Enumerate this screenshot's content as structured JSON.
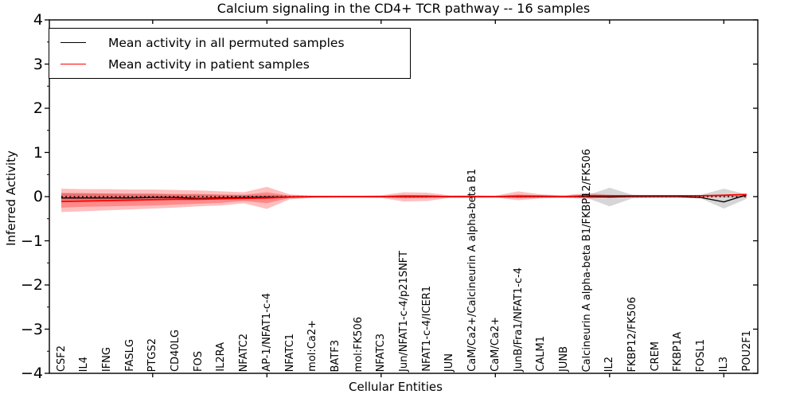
{
  "title": "Calcium signaling in the CD4+ TCR pathway -- 16 samples",
  "xlabel": "Cellular Entities",
  "ylabel": "Inferred Activity",
  "legend": {
    "items": [
      {
        "label": "Mean activity in all permuted samples",
        "color": "#000000"
      },
      {
        "label": "Mean activity in patient samples",
        "color": "#ff0000"
      }
    ]
  },
  "colors": {
    "permuted_line": "#000000",
    "patient_line": "#ff0000",
    "permuted_band": "rgba(120,120,120,0.30)",
    "patient_band": "rgba(255,0,0,0.25)",
    "axis": "#000000"
  },
  "chart_data": {
    "type": "line",
    "title": "Calcium signaling in the CD4+ TCR pathway -- 16 samples",
    "xlabel": "Cellular Entities",
    "ylabel": "Inferred Activity",
    "ylim": [
      -4,
      4
    ],
    "yticks": [
      -4,
      -3,
      -2,
      -1,
      0,
      1,
      2,
      3,
      4
    ],
    "grid": false,
    "legend_position": "upper left",
    "categories": [
      "CSF2",
      "IL4",
      "IFNG",
      "FASLG",
      "PTGS2",
      "CD40LG",
      "FOS",
      "IL2RA",
      "NFATC2",
      "AP-1/NFAT1-c-4",
      "NFATC1",
      "mol:Ca2+",
      "BATF3",
      "mol:FK506",
      "NFATC3",
      "Jun/NFAT1-c-4/p21SNFT",
      "NFAT1-c-4/ICER1",
      "JUN",
      "CaM/Ca2+/Calcineurin A alpha-beta B1",
      "CaM/Ca2+",
      "JunB/Fra1/NFAT1-c-4",
      "CALM1",
      "JUNB",
      "Calcineurin A alpha-beta B1/FKBP12/FK506",
      "IL2",
      "FKBP12/FK506",
      "CREM",
      "FKBP1A",
      "FOSL1",
      "IL3",
      "POU2F1"
    ],
    "series": [
      {
        "name": "Mean activity in all permuted samples",
        "color": "#000000",
        "values": [
          -0.03,
          -0.03,
          -0.03,
          -0.03,
          -0.02,
          -0.02,
          -0.04,
          -0.03,
          -0.02,
          -0.01,
          -0.01,
          0,
          0,
          0,
          0,
          0,
          0,
          0,
          0,
          0,
          0,
          0,
          0,
          0,
          -0.01,
          0,
          0,
          0,
          -0.02,
          -0.12,
          0.04
        ]
      },
      {
        "name": "Mean activity in patient samples",
        "color": "#ff0000",
        "values": [
          -0.11,
          -0.1,
          -0.09,
          -0.08,
          -0.07,
          -0.06,
          -0.06,
          -0.05,
          -0.04,
          -0.03,
          -0.01,
          0,
          0,
          0,
          0,
          0.01,
          0.01,
          0,
          0,
          0,
          0.01,
          0.01,
          0,
          0.02,
          0.02,
          0.02,
          0.02,
          0.02,
          0.02,
          0.03,
          0.05
        ]
      }
    ],
    "bands": [
      {
        "name": "permuted-samples-std",
        "color": "rgba(120,120,120,0.30)",
        "upper": [
          0.08,
          0.07,
          0.07,
          0.06,
          0.06,
          0.05,
          0.05,
          0.04,
          0.04,
          0.04,
          0.03,
          0.02,
          0.02,
          0.02,
          0.02,
          0.03,
          0.03,
          0.02,
          0.02,
          0.02,
          0.03,
          0.02,
          0.02,
          0.03,
          0.2,
          0.04,
          0.03,
          0.03,
          0.04,
          0.18,
          0.05
        ],
        "lower": [
          -0.08,
          -0.07,
          -0.07,
          -0.06,
          -0.06,
          -0.05,
          -0.05,
          -0.04,
          -0.04,
          -0.04,
          -0.03,
          -0.02,
          -0.02,
          -0.02,
          -0.02,
          -0.03,
          -0.03,
          -0.02,
          -0.02,
          -0.02,
          -0.03,
          -0.02,
          -0.02,
          -0.03,
          -0.22,
          -0.04,
          -0.03,
          -0.03,
          -0.04,
          -0.27,
          -0.05
        ]
      },
      {
        "name": "patient-samples-std-outer",
        "color": "rgba(255,0,0,0.25)",
        "upper": [
          0.18,
          0.17,
          0.17,
          0.16,
          0.16,
          0.15,
          0.14,
          0.12,
          0.1,
          0.22,
          0.05,
          0.02,
          0.02,
          0.02,
          0.03,
          0.1,
          0.09,
          0.03,
          0.03,
          0.02,
          0.12,
          0.05,
          0.03,
          0.08,
          0.04,
          0.02,
          0.01,
          0.01,
          0.01,
          0.01,
          0.02
        ],
        "lower": [
          -0.35,
          -0.33,
          -0.31,
          -0.29,
          -0.27,
          -0.25,
          -0.22,
          -0.2,
          -0.15,
          -0.28,
          -0.06,
          -0.03,
          -0.02,
          -0.02,
          -0.03,
          -0.11,
          -0.1,
          -0.03,
          -0.03,
          -0.02,
          -0.08,
          -0.04,
          -0.03,
          -0.05,
          -0.02,
          -0.01,
          -0.01,
          -0.01,
          -0.01,
          -0.01,
          -0.02
        ]
      },
      {
        "name": "patient-samples-std-inner",
        "color": "rgba(255,0,0,0.28)",
        "upper": [
          0.08,
          0.08,
          0.07,
          0.07,
          0.07,
          0.06,
          0.06,
          0.05,
          0.04,
          0.1,
          0.02,
          0.01,
          0.01,
          0.01,
          0.01,
          0.04,
          0.03,
          0.01,
          0.01,
          0.01,
          0.05,
          0.02,
          0.01,
          0.03,
          0.01,
          0.01,
          0,
          0,
          0,
          0,
          0.01
        ],
        "lower": [
          -0.25,
          -0.23,
          -0.22,
          -0.21,
          -0.2,
          -0.18,
          -0.16,
          -0.14,
          -0.1,
          -0.15,
          -0.03,
          -0.02,
          -0.01,
          -0.01,
          -0.01,
          -0.04,
          -0.03,
          -0.01,
          -0.01,
          -0.01,
          -0.03,
          -0.02,
          -0.01,
          -0.02,
          -0.01,
          -0.01,
          0,
          0,
          0,
          0,
          -0.01
        ]
      }
    ],
    "zero_line": {
      "y": 0,
      "style": "dotted",
      "color": "#000000"
    }
  }
}
